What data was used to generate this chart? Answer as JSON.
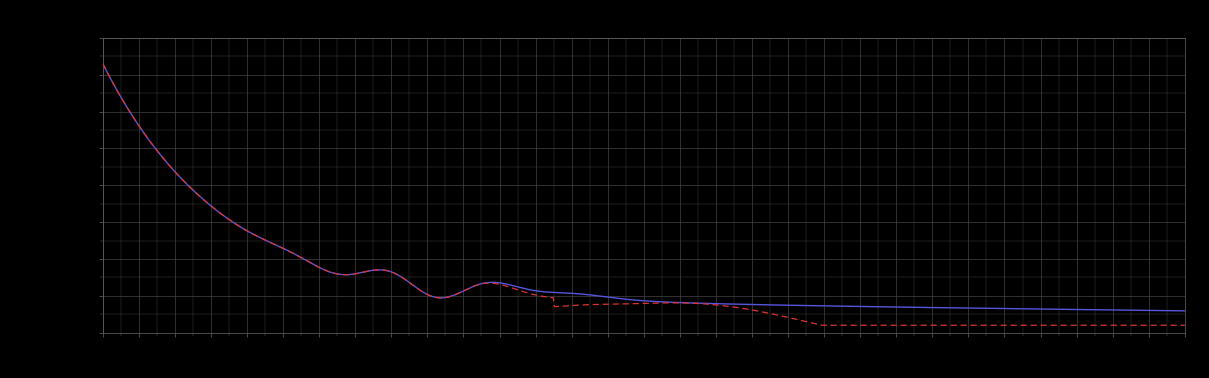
{
  "background_color": "#000000",
  "plot_bg_color": "#000000",
  "grid_color": "#444444",
  "axis_color": "#666666",
  "tick_color": "#666666",
  "blue_line_color": "#5555dd",
  "red_line_color": "#dd3333",
  "figsize": [
    12.09,
    3.78
  ],
  "dpi": 100,
  "xlim": [
    0,
    120
  ],
  "ylim": [
    0,
    8
  ],
  "grid_major_x": 4,
  "grid_major_y": 1,
  "grid_minor_x": 2,
  "grid_minor_y": 0.5
}
